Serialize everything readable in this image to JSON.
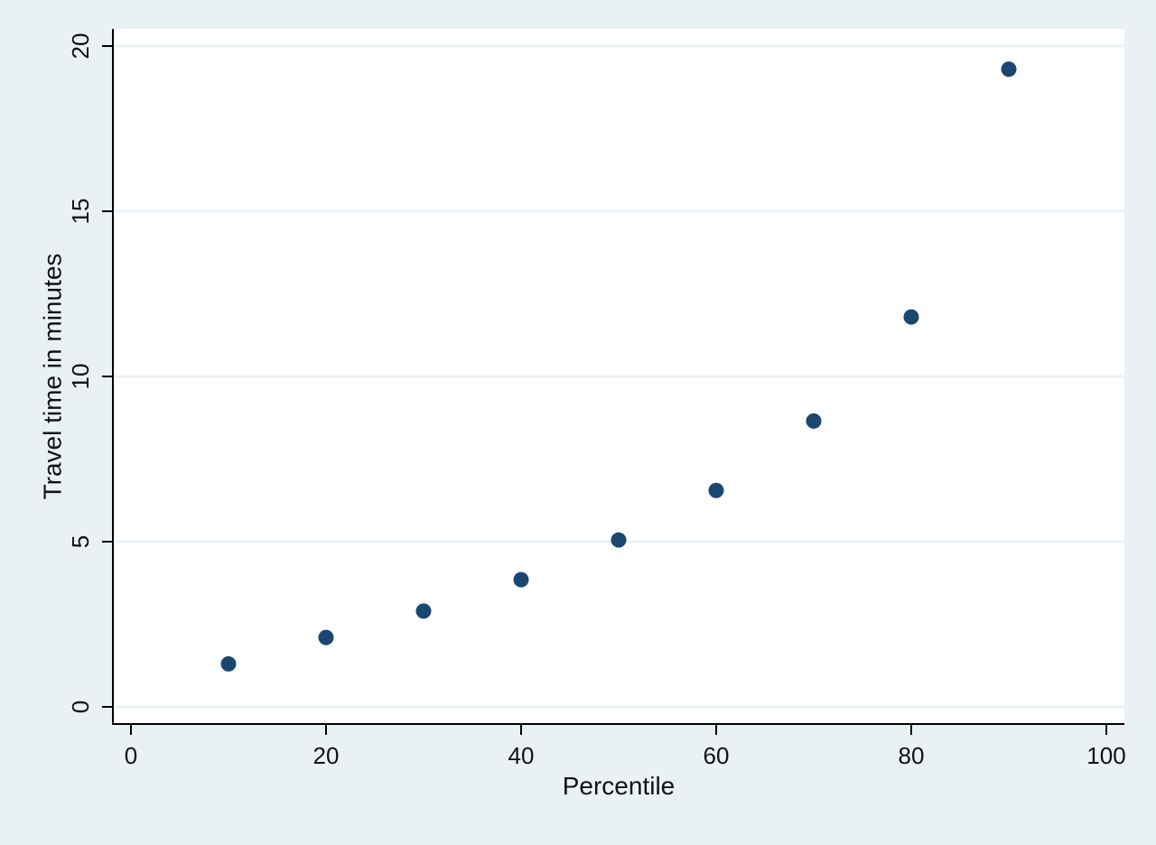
{
  "chart_data": {
    "type": "scatter",
    "title": "",
    "xlabel": "Percentile",
    "ylabel": "Travel time in minutes",
    "xlim": [
      0,
      100
    ],
    "ylim": [
      0,
      20
    ],
    "x_ticks": [
      0,
      20,
      40,
      60,
      80,
      100
    ],
    "y_ticks": [
      0,
      5,
      10,
      15,
      20
    ],
    "grid": "horizontal",
    "legend": "none",
    "series": [
      {
        "points": [
          {
            "x": 10,
            "y": 1.3
          },
          {
            "x": 20,
            "y": 2.1
          },
          {
            "x": 30,
            "y": 2.9
          },
          {
            "x": 40,
            "y": 3.85
          },
          {
            "x": 50,
            "y": 5.05
          },
          {
            "x": 60,
            "y": 6.55
          },
          {
            "x": 70,
            "y": 8.65
          },
          {
            "x": 80,
            "y": 11.8
          },
          {
            "x": 90,
            "y": 19.3
          }
        ]
      }
    ],
    "colors": {
      "background": "#eaf1f4",
      "plot_area": "#ffffff",
      "gridline": "#eaf1f4",
      "marker": "#1a476f",
      "axis": "#000000"
    }
  }
}
